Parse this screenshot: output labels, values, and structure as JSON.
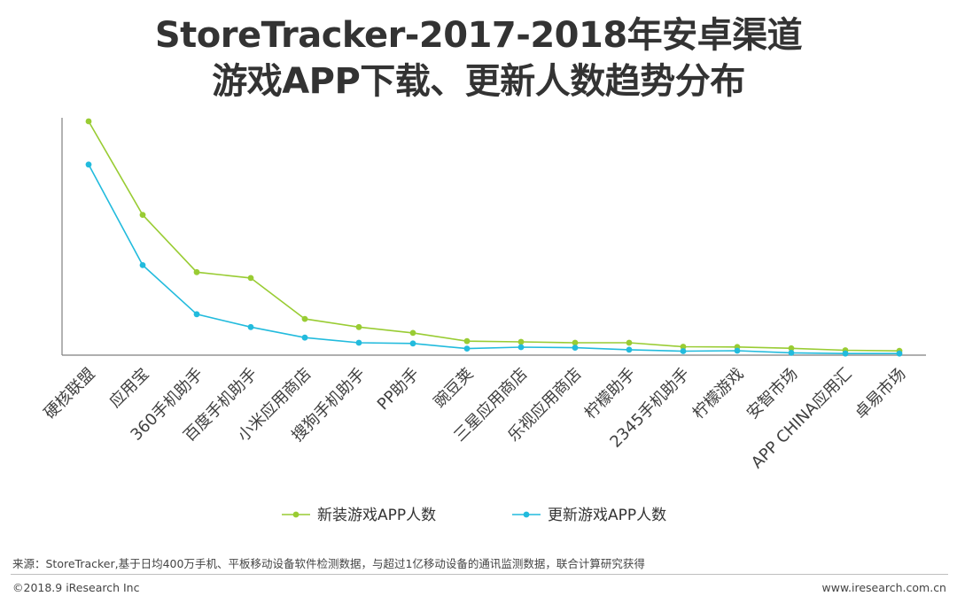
{
  "title_line1": "StoreTracker-2017-2018年安卓渠道",
  "title_line2": "游戏APP下载、更新人数趋势分布",
  "source": "来源：StoreTracker,基于日均400万手机、平板移动设备软件检测数据，与超过1亿移动设备的通讯监测数据，联合计算研究获得",
  "copyright": "©2018.9 iResearch Inc",
  "website": "www.iresearch.com.cn",
  "colors": {
    "series_new": "#99cc33",
    "series_update": "#22bbdd",
    "axis": "#7f7f7f"
  },
  "chart_data": {
    "type": "line",
    "categories": [
      "硬核联盟",
      "应用宝",
      "360手机助手",
      "百度手机助手",
      "小米应用商店",
      "搜狗手机助手",
      "PP助手",
      "豌豆荚",
      "三星应用商店",
      "乐视应用商店",
      "柠檬助手",
      "2345手机助手",
      "柠檬游戏",
      "安智市场",
      "APP CHINA应用汇",
      "卓易市场"
    ],
    "series": [
      {
        "name": "新装游戏APP人数",
        "values": [
          100,
          60,
          35.5,
          33,
          15.5,
          12,
          9.5,
          6,
          5.7,
          5.3,
          5.3,
          3.6,
          3.5,
          2.9,
          2.1,
          1.8
        ]
      },
      {
        "name": "更新游戏APP人数",
        "values": [
          81.5,
          38.5,
          17.5,
          12,
          7.5,
          5.3,
          5,
          2.8,
          3.4,
          3.2,
          2.3,
          1.7,
          1.9,
          1.0,
          0.7,
          0.7
        ]
      }
    ],
    "ylim": [
      0,
      100
    ],
    "grid": false,
    "legend": "bottom-center",
    "y_tick_labels": false
  }
}
